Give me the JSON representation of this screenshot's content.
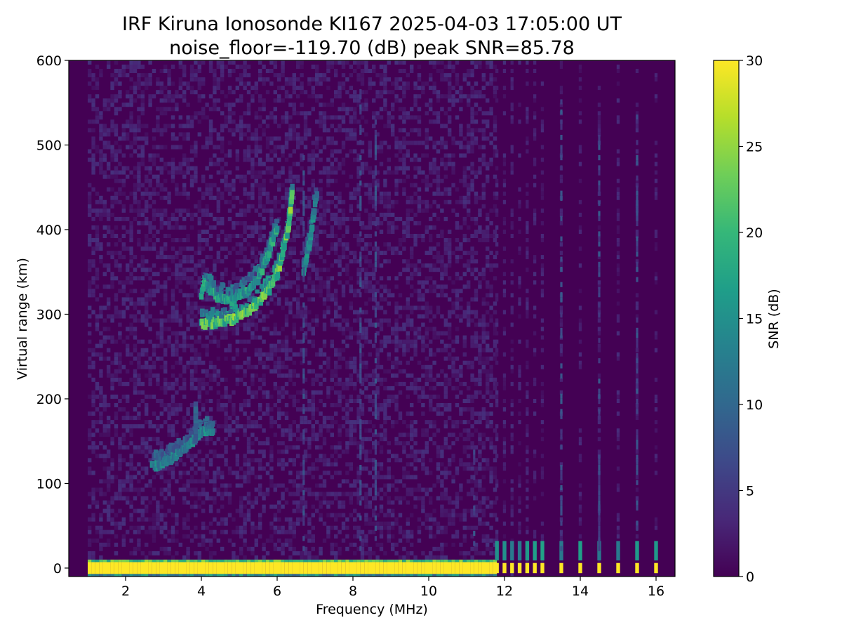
{
  "chart_data": {
    "type": "heatmap",
    "title": "IRF Kiruna Ionosonde KI167 2025-04-03 17:05:00  UT",
    "subtitle": "noise_floor=-119.70 (dB) peak SNR=85.78",
    "xlabel": "Frequency (MHz)",
    "ylabel": "Virtual range (km)",
    "xlim": [
      0.5,
      16.5
    ],
    "ylim": [
      -10,
      600
    ],
    "x_ticks": [
      2,
      4,
      6,
      8,
      10,
      12,
      14,
      16
    ],
    "y_ticks": [
      0,
      100,
      200,
      300,
      400,
      500,
      600
    ],
    "colorbar": {
      "label": "SNR (dB)",
      "range": [
        0,
        30
      ],
      "ticks": [
        0,
        5,
        10,
        15,
        20,
        25,
        30
      ],
      "colormap": [
        "#440154",
        "#482878",
        "#3e4989",
        "#31688e",
        "#26828e",
        "#1f9e89",
        "#35b779",
        "#6ece58",
        "#b5de2b",
        "#fde725"
      ]
    },
    "grid": false,
    "data_start_freq_mhz": 1.0,
    "data_end_freq_mhz": 16.2,
    "continuous_until_freq_mhz": 11.7,
    "discrete_freqs_mhz": [
      11.8,
      12.0,
      12.2,
      12.4,
      12.6,
      12.8,
      13.0,
      13.5,
      14.0,
      14.5,
      15.0,
      15.5,
      16.0
    ],
    "traces": [
      {
        "name": "ground-echo",
        "freq_range": [
          1.0,
          16.2
        ],
        "range_km": [
          -7,
          7
        ],
        "snr_db": 30
      },
      {
        "name": "E-layer",
        "points": [
          [
            2.7,
            118
          ],
          [
            3.0,
            122
          ],
          [
            3.3,
            130
          ],
          [
            3.6,
            140
          ],
          [
            3.8,
            150
          ],
          [
            4.0,
            160
          ],
          [
            4.3,
            160
          ]
        ],
        "snr_db": 14
      },
      {
        "name": "E-layer-cusp",
        "points": [
          [
            3.85,
            152
          ],
          [
            3.85,
            165
          ],
          [
            3.85,
            178
          ],
          [
            3.85,
            188
          ]
        ],
        "snr_db": 10
      },
      {
        "name": "F-layer-o-trace",
        "points": [
          [
            4.0,
            287
          ],
          [
            4.4,
            288
          ],
          [
            4.8,
            292
          ],
          [
            5.2,
            300
          ],
          [
            5.5,
            312
          ],
          [
            5.8,
            328
          ],
          [
            6.0,
            345
          ],
          [
            6.15,
            370
          ],
          [
            6.3,
            400
          ],
          [
            6.4,
            440
          ]
        ],
        "snr_db": 22
      },
      {
        "name": "F-layer-upper",
        "points": [
          [
            4.0,
            320
          ],
          [
            4.1,
            335
          ],
          [
            4.4,
            320
          ],
          [
            4.8,
            315
          ],
          [
            5.2,
            325
          ],
          [
            5.5,
            340
          ],
          [
            5.7,
            360
          ],
          [
            5.85,
            380
          ],
          [
            6.0,
            400
          ]
        ],
        "snr_db": 17
      },
      {
        "name": "F-layer-x-trace",
        "points": [
          [
            6.7,
            350
          ],
          [
            6.85,
            380
          ],
          [
            6.95,
            410
          ],
          [
            7.05,
            440
          ]
        ],
        "snr_db": 14
      },
      {
        "name": "interference-lines",
        "freqs_mhz": [
          6.7,
          8.2,
          8.6,
          11.2,
          13.5,
          14.5,
          15.5
        ],
        "snr_db": 8
      }
    ]
  }
}
